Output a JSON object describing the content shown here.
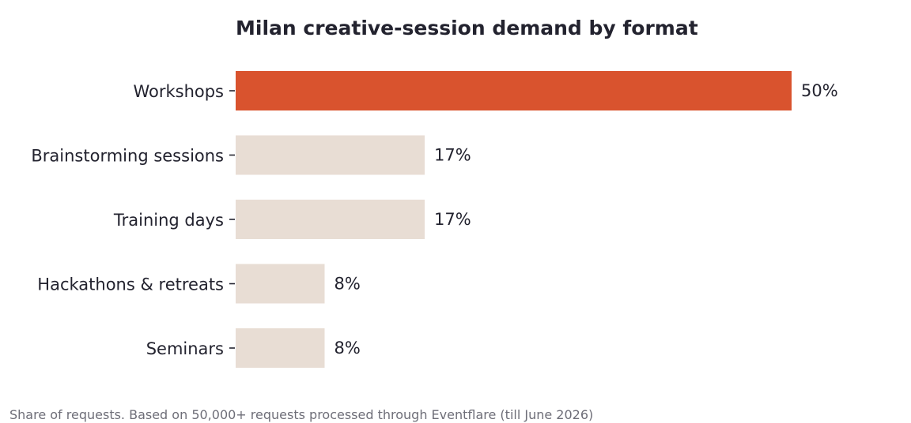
{
  "chart_data": {
    "type": "bar",
    "orientation": "horizontal",
    "title": "Milan creative-session demand by format",
    "categories": [
      "Workshops",
      "Brainstorming sessions",
      "Training days",
      "Hackathons & retreats",
      "Seminars"
    ],
    "values": [
      50,
      17,
      17,
      8,
      8
    ],
    "value_labels": [
      "50%",
      "17%",
      "17%",
      "8%",
      "8%"
    ],
    "highlight_index": 0,
    "xlim": [
      0,
      50
    ],
    "grid": false,
    "colors": {
      "highlight": "#d9532e",
      "default": "#e8ddd4",
      "text": "#23232f",
      "footnote": "#6e6e78"
    },
    "footnote": "Share of requests. Based on 50,000+ requests processed through Eventflare (till June 2026)"
  }
}
